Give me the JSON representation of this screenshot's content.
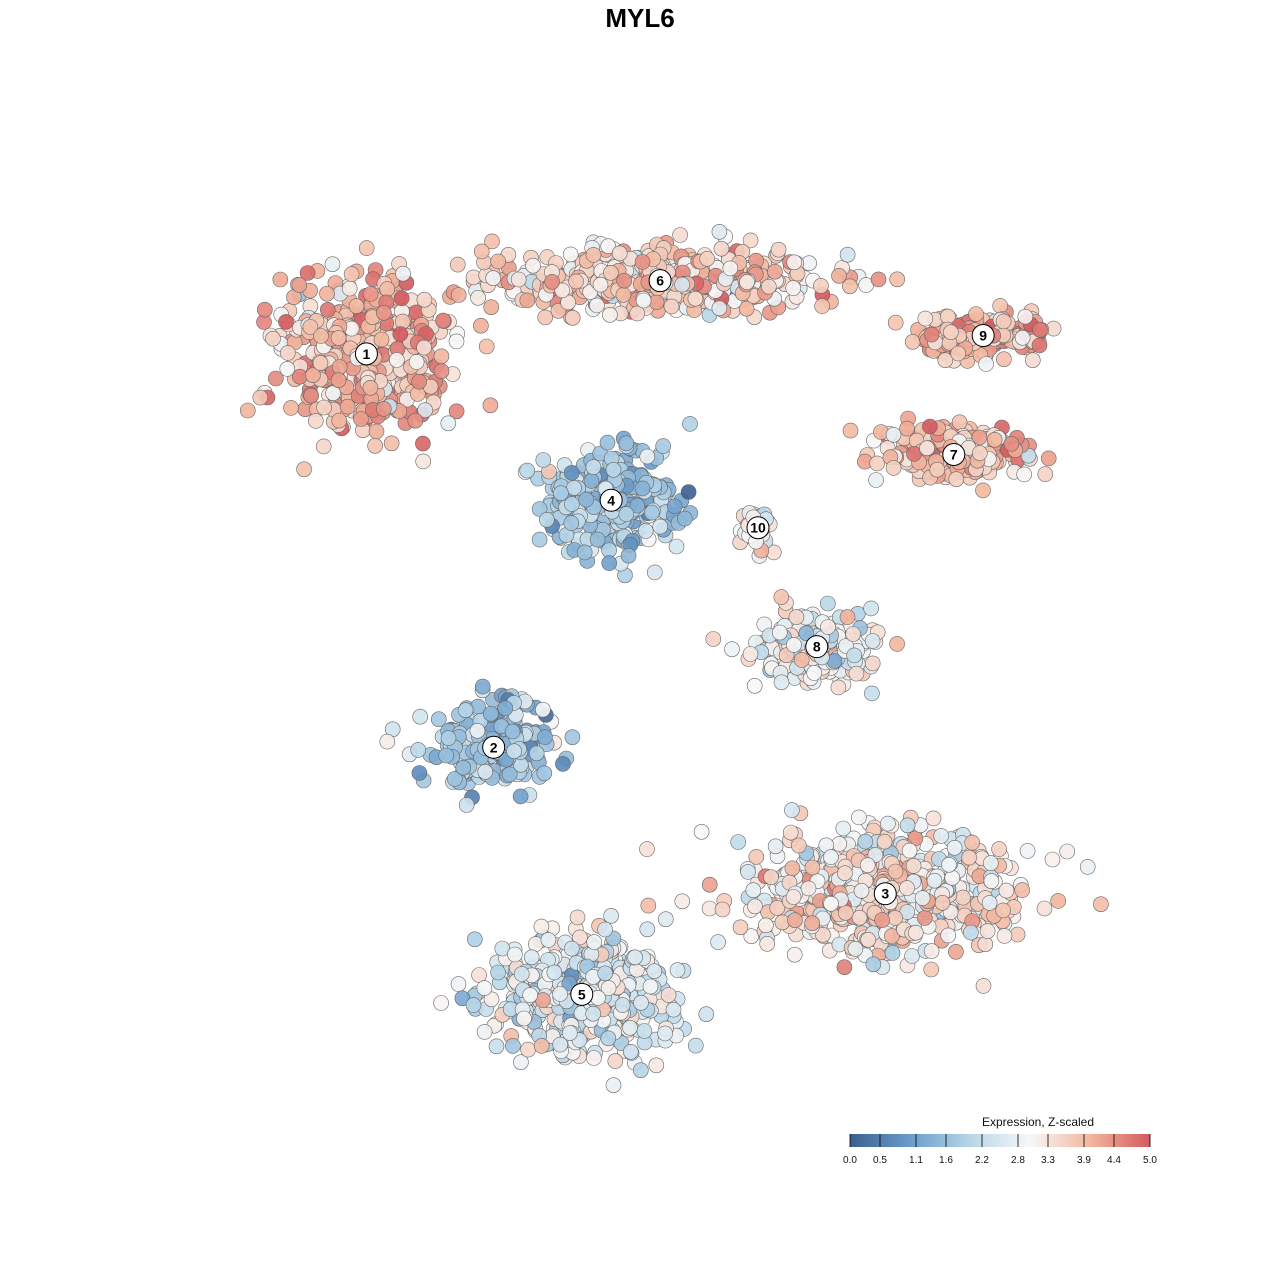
{
  "chart_data": {
    "type": "scatter",
    "title": "MYL6",
    "xlabel": "",
    "ylabel": "",
    "grid": false,
    "legend_placement": "bottom-right",
    "legend": {
      "title": "Expression, Z-scaled",
      "ticks": [
        "0.0",
        "0.5",
        "1.1",
        "1.6",
        "2.2",
        "2.8",
        "3.3",
        "3.9",
        "4.4",
        "5.0"
      ],
      "range": [
        0,
        5
      ],
      "colors": [
        "#3b5f8f",
        "#6a9ccb",
        "#b7d6e8",
        "#f7f7f7",
        "#f3b79e",
        "#d45a5f"
      ]
    },
    "clusters": [
      {
        "id": "1",
        "x": -28,
        "y": 26,
        "mean_expression": 3.9
      },
      {
        "id": "6",
        "x": 2,
        "y": 34,
        "mean_expression": 3.6
      },
      {
        "id": "9",
        "x": 35,
        "y": 28,
        "mean_expression": 3.9
      },
      {
        "id": "7",
        "x": 32,
        "y": 15,
        "mean_expression": 3.8
      },
      {
        "id": "4",
        "x": -3,
        "y": 10,
        "mean_expression": 1.8
      },
      {
        "id": "10",
        "x": 12,
        "y": 7,
        "mean_expression": 3.0
      },
      {
        "id": "8",
        "x": 18,
        "y": -6,
        "mean_expression": 2.9
      },
      {
        "id": "2",
        "x": -15,
        "y": -17,
        "mean_expression": 1.7
      },
      {
        "id": "3",
        "x": 25,
        "y": -33,
        "mean_expression": 3.2
      },
      {
        "id": "5",
        "x": -6,
        "y": -44,
        "mean_expression": 2.7
      }
    ],
    "xlim": [
      -45,
      50
    ],
    "ylim": [
      -55,
      45
    ]
  }
}
